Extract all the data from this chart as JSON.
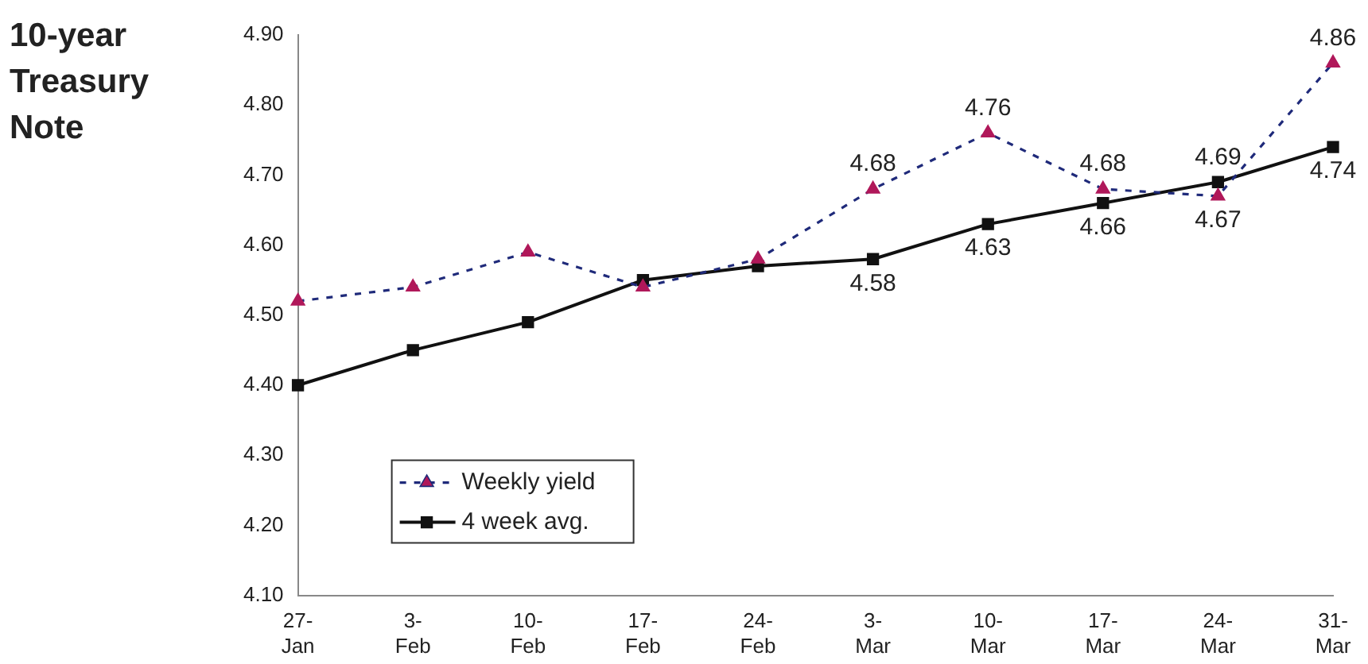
{
  "chart_data": {
    "type": "line",
    "title": "10-year Treasury Note",
    "categories": [
      "27-Jan",
      "3-Feb",
      "10-Feb",
      "17-Feb",
      "24-Feb",
      "3-Mar",
      "10-Mar",
      "17-Mar",
      "24-Mar",
      "31-Mar"
    ],
    "series": [
      {
        "name": "Weekly yield",
        "color": "#1f2a7a",
        "colors": [
          "#b0185a",
          "#b0185a",
          "#b0185a",
          "#b0185a",
          "#b0185a",
          "#b0185a",
          "#b0185a",
          "#b0185a",
          "#b0185a",
          "#b0185a"
        ],
        "marker": "triangle",
        "line_style": "dashed",
        "values": [
          4.52,
          4.54,
          4.59,
          4.54,
          4.58,
          4.68,
          4.76,
          4.68,
          4.67,
          4.86
        ],
        "value_labels": [
          null,
          null,
          null,
          null,
          null,
          "4.68",
          "4.76",
          "4.68",
          "4.67",
          "4.86"
        ]
      },
      {
        "name": "4 week avg.",
        "color": "#111111",
        "marker": "square",
        "line_style": "solid",
        "values": [
          4.4,
          4.45,
          4.49,
          4.55,
          4.57,
          4.58,
          4.63,
          4.66,
          4.69,
          4.74
        ],
        "value_labels": [
          null,
          null,
          null,
          null,
          null,
          "4.58",
          "4.63",
          "4.66",
          "4.69",
          "4.74"
        ]
      }
    ],
    "ylim": [
      4.1,
      4.9
    ],
    "yticks": [
      {
        "value": 4.1,
        "label": "4.10"
      },
      {
        "value": 4.2,
        "label": "4.20"
      },
      {
        "value": 4.3,
        "label": "4.30"
      },
      {
        "value": 4.4,
        "label": "4.40"
      },
      {
        "value": 4.5,
        "label": "4.50"
      },
      {
        "value": 4.6,
        "label": "4.60"
      },
      {
        "value": 4.7,
        "label": "4.70"
      },
      {
        "value": 4.8,
        "label": "4.80"
      },
      {
        "value": 4.9,
        "label": "4.90"
      }
    ],
    "grid": false,
    "legend": "bottom left"
  }
}
